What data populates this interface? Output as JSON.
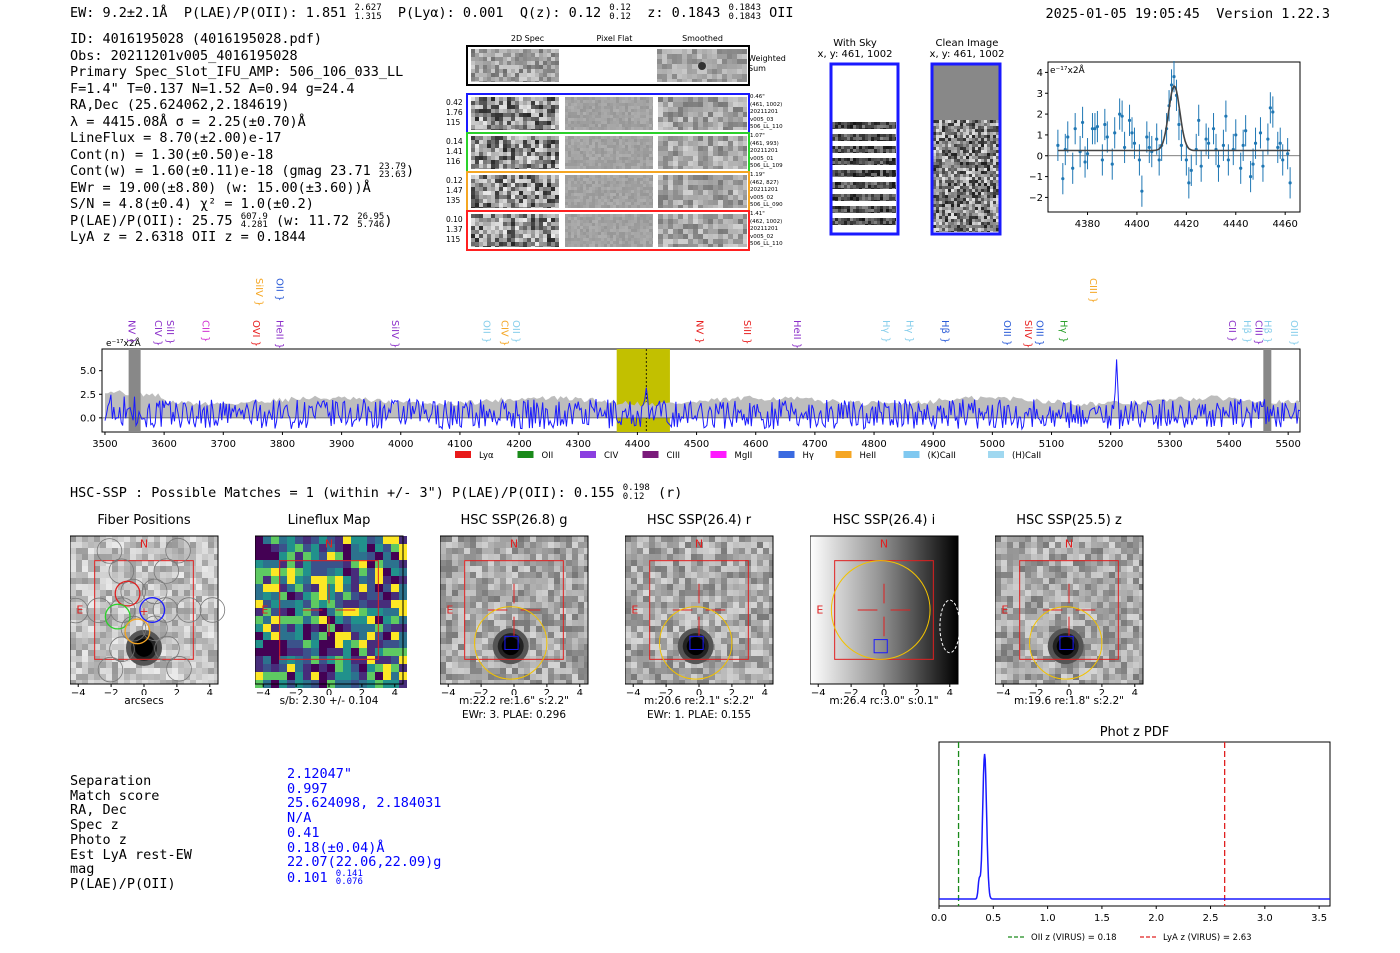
{
  "header": {
    "ew": "EW: 9.2±2.1Å",
    "plae_label": "P(LAE)/P(OII): 1.851",
    "plae_hi": "2.627",
    "plae_lo": "1.315",
    "plya": "P(Lyα): 0.001",
    "q_label": "Q(z): 0.12",
    "q_hi": "0.12",
    "q_lo": "0.12",
    "z_label": "z: 0.1843",
    "z_hi": "0.1843",
    "z_lo": "0.1843",
    "z_line": "OII",
    "timestamp": "2025-01-05 19:05:45",
    "version": "Version 1.22.3"
  },
  "info": {
    "id": "ID: 4016195028 (4016195028.pdf)",
    "obs": "Obs: 20211201v005_4016195028",
    "primary": "Primary Spec_Slot_IFU_AMP: 506_106_033_LL",
    "fit": "F=1.4\"  T=0.137  N=1.52  A=0.94  g=24.4",
    "radec": "RA,Dec (25.624062,2.184619)",
    "lambda": "λ = 4415.08Å   σ = 2.25(±0.70)Å",
    "lineflux": "LineFlux = 8.70(±2.00)e-17",
    "contn": "Cont(n) = 1.30(±0.50)e-18",
    "contw": "Cont(w) = 1.60(±0.11)e-18 (gmag 23.71",
    "gmag_hi": "23.79",
    "gmag_lo": "23.63",
    "ewr": "EWr = 19.00(±8.80) (w: 15.00(±3.60))Å",
    "sn": "S/N = 4.8(±0.4)  χ² = 1.0(±0.2)",
    "plae": "P(LAE)/P(OII): 25.75",
    "plae_hi": "607.9",
    "plae_lo": "4.281",
    "plae_w": "(w: 11.72",
    "plae_w_hi": "26.95",
    "plae_w_lo": "5.746",
    "lya_z": "LyA z = 2.6318   OII z = 0.1844"
  },
  "cutouts": {
    "col_2d": "2D Spec",
    "col_flat": "Pixel Flat",
    "col_smooth": "Smoothed",
    "weighted": "Weighted Sum",
    "rows": [
      {
        "color": "#1a1aff",
        "left": [
          "0.42",
          "1.76",
          "115"
        ],
        "right": [
          "0.46\"",
          "(461, 1002)",
          "20211201",
          "v005_03",
          "506_LL_110"
        ]
      },
      {
        "color": "#2ad12a",
        "left": [
          "0.14",
          "1.41",
          "116"
        ],
        "right": [
          "1.07\"",
          "(461, 993)",
          "20211201",
          "v005_01",
          "506_LL_109"
        ]
      },
      {
        "color": "#f5a623",
        "left": [
          "0.12",
          "1.47",
          "135"
        ],
        "right": [
          "1.19\"",
          "(462, 827)",
          "20211201",
          "v005_02",
          "506_LL_090"
        ]
      },
      {
        "color": "#ff2020",
        "left": [
          "0.10",
          "1.37",
          "115"
        ],
        "right": [
          "1.41\"",
          "(462, 1002)",
          "20211201",
          "v005_02",
          "506_LL_110"
        ]
      }
    ]
  },
  "sky": {
    "with_sky": "With Sky",
    "clean": "Clean Image",
    "coords": "x, y: 461, 1002"
  },
  "zoom_chart": {
    "type": "scatter",
    "ylabel": "e⁻¹⁷x2Å",
    "xticks": [
      "4380",
      "4400",
      "4420",
      "4440",
      "4460"
    ],
    "yticks": [
      "4",
      "3",
      "2",
      "1",
      "0",
      "−1",
      "−2"
    ],
    "xlim": [
      4364,
      4466
    ],
    "ylim": [
      -2.7,
      4.5
    ],
    "x": [
      4368,
      4370,
      4371,
      4372,
      4374,
      4375,
      4377,
      4378,
      4379,
      4380,
      4382,
      4383,
      4384,
      4386,
      4387,
      4388,
      4390,
      4391,
      4393,
      4394,
      4395,
      4397,
      4398,
      4399,
      4401,
      4402,
      4404,
      4405,
      4406,
      4408,
      4409,
      4410,
      4412,
      4413,
      4414,
      4415,
      4416,
      4417,
      4418,
      4420,
      4421,
      4422,
      4424,
      4425,
      4426,
      4428,
      4429,
      4431,
      4432,
      4433,
      4435,
      4436,
      4437,
      4439,
      4440,
      4442,
      4443,
      4444,
      4446,
      4447,
      4448,
      4450,
      4451,
      4453,
      4454,
      4455,
      4457,
      4458,
      4459,
      4461,
      4462
    ],
    "y": [
      0.5,
      -1.1,
      0.3,
      0.9,
      -0.6,
      1.3,
      0.2,
      1.6,
      -0.3,
      0.1,
      1.3,
      1.3,
      1.4,
      -0.2,
      1.5,
      0.9,
      -0.4,
      1.1,
      2.0,
      1.9,
      0.4,
      1.7,
      1.1,
      0.6,
      -0.2,
      -1.7,
      0.9,
      0.4,
      0.2,
      0.8,
      -0.2,
      0.5,
      1.3,
      2.4,
      3.4,
      3.8,
      2.9,
      1.5,
      0.5,
      -0.2,
      -1.3,
      -0.7,
      0.3,
      1.7,
      -0.5,
      0.8,
      0.6,
      1.3,
      0.3,
      -0.5,
      0.5,
      1.9,
      -0.2,
      0.3,
      1.0,
      -0.6,
      0.5,
      1.2,
      -1.0,
      -0.4,
      0.6,
      1.1,
      -0.5,
      0.8,
      2.3,
      2.1,
      0.4,
      0.6,
      -0.2,
      0.1,
      -1.3
    ],
    "fit_center": 4415.1,
    "fit_sigma": 2.25,
    "fit_amp": 3.1,
    "fit_cont": 0.25
  },
  "spectrum": {
    "type": "line",
    "ylabel": "e⁻¹⁷x2Å",
    "xticks": [
      "3500",
      "3600",
      "3700",
      "3800",
      "3900",
      "4000",
      "4100",
      "4200",
      "4300",
      "4400",
      "4500",
      "4600",
      "4700",
      "4800",
      "4900",
      "5000",
      "5100",
      "5200",
      "5300",
      "5400",
      "5500"
    ],
    "yticks": [
      "5.0",
      "2.5",
      "0.0"
    ],
    "xlim": [
      3495,
      5520
    ],
    "ylim": [
      -1.5,
      7.3
    ],
    "highlight": [
      4365,
      4455
    ],
    "center": 4415,
    "lines_top": [
      {
        "label": "SiIV",
        "x": 3760,
        "color": "#f5a623"
      },
      {
        "label": "OII",
        "x": 3795,
        "color": "#2a5bd7"
      },
      {
        "label": "CIII",
        "x": 5170,
        "color": "#f5a623"
      }
    ],
    "lines_mid": [
      {
        "label": "NV",
        "x": 3545,
        "color": "#8b2fc9"
      },
      {
        "label": "CIV",
        "x": 3590,
        "color": "#8b2fc9"
      },
      {
        "label": "SiII",
        "x": 3610,
        "color": "#8b2fc9"
      },
      {
        "label": "CII",
        "x": 3670,
        "color": "#d02fd0"
      },
      {
        "label": "OVI",
        "x": 3755,
        "color": "#e82020"
      },
      {
        "label": "HeII",
        "x": 3795,
        "color": "#8b2fc9"
      },
      {
        "label": "SiIV",
        "x": 3990,
        "color": "#8b2fc9"
      },
      {
        "label": "OII",
        "x": 4145,
        "color": "#87ceeb"
      },
      {
        "label": "CIV",
        "x": 4175,
        "color": "#f5a623"
      },
      {
        "label": "OII",
        "x": 4195,
        "color": "#87ceeb"
      },
      {
        "label": "NV",
        "x": 4505,
        "color": "#e82020"
      },
      {
        "label": "SiII",
        "x": 4585,
        "color": "#e82020"
      },
      {
        "label": "HeII",
        "x": 4670,
        "color": "#8b2fc9"
      },
      {
        "label": "Hγ",
        "x": 4820,
        "color": "#87ceeb"
      },
      {
        "label": "Hγ",
        "x": 4860,
        "color": "#87ceeb"
      },
      {
        "label": "Hβ",
        "x": 4920,
        "color": "#2a5bd7"
      },
      {
        "label": "OIII",
        "x": 5025,
        "color": "#2a5bd7"
      },
      {
        "label": "SiIV",
        "x": 5060,
        "color": "#e82020"
      },
      {
        "label": "OIII",
        "x": 5080,
        "color": "#2a5bd7"
      },
      {
        "label": "Hγ",
        "x": 5120,
        "color": "#2aa02a"
      },
      {
        "label": "CII",
        "x": 5405,
        "color": "#8b2fc9"
      },
      {
        "label": "Hβ",
        "x": 5430,
        "color": "#87ceeb"
      },
      {
        "label": "CIII",
        "x": 5450,
        "color": "#8b2fc9"
      },
      {
        "label": "Hβ",
        "x": 5465,
        "color": "#87ceeb"
      },
      {
        "label": "OIII",
        "x": 5510,
        "color": "#87ceeb"
      }
    ],
    "legend": [
      {
        "label": "Lyα",
        "color": "#e81a1a"
      },
      {
        "label": "OII",
        "color": "#1a8a1a"
      },
      {
        "label": "CIV",
        "color": "#8b3fe0"
      },
      {
        "label": "CIII",
        "color": "#7a1a7a"
      },
      {
        "label": "MgII",
        "color": "#ff1aff"
      },
      {
        "label": "Hγ",
        "color": "#3a6ae0"
      },
      {
        "label": "HeII",
        "color": "#f5a623"
      },
      {
        "label": "(K)CaII",
        "color": "#7fc8f0"
      },
      {
        "label": "(H)CaII",
        "color": "#a0d8f0"
      }
    ]
  },
  "hsc": {
    "summary": "HSC-SSP : Possible Matches = 1 (within +/- 3\")  P(LAE)/P(OII): 0.155",
    "summary_hi": "0.198",
    "summary_lo": "0.12",
    "summary_band": "(r)",
    "ticks": [
      "4",
      "2",
      "0",
      "−2",
      "−4"
    ],
    "xticks": [
      "−4",
      "−2",
      "0",
      "2",
      "4"
    ],
    "north": "N",
    "east": "E",
    "panels": [
      {
        "title": "Fiber Positions",
        "cap1": "arcsecs",
        "cap2": ""
      },
      {
        "title": "Lineflux Map",
        "cap1": "s/b: 2.30 +/- 0.104",
        "cap2": ""
      },
      {
        "title": "HSC SSP(26.8) g",
        "cap1": "m:22.2   re:1.6\"   s:2.2\"",
        "cap2": "EWr: 3. PLAE: 0.296"
      },
      {
        "title": "HSC SSP(26.4) r",
        "cap1": "m:20.6   re:2.1\"   s:2.2\"",
        "cap2": "EWr: 1. PLAE: 0.155"
      },
      {
        "title": "HSC SSP(26.4) i",
        "cap1": "m:26.4  rc:3.0\"   s:0.1\"",
        "cap2": ""
      },
      {
        "title": "HSC SSP(25.5) z",
        "cap1": "m:19.6   re:1.8\"   s:2.2\"",
        "cap2": ""
      }
    ]
  },
  "match": {
    "labels": [
      "Separation",
      "Match score",
      "RA, Dec",
      "Spec z",
      "Photo z",
      "Est LyA rest-EW",
      "mag",
      "P(LAE)/P(OII)"
    ],
    "values": [
      "2.12047\"",
      "0.997",
      "25.624098, 2.184031",
      "N/A",
      "0.41",
      "0.18(±0.04)Å",
      "22.07(22.06,22.09)g",
      "0.101"
    ],
    "plae_hi": "0.141",
    "plae_lo": "0.076"
  },
  "photz": {
    "type": "line",
    "title": "Phot z PDF",
    "xticks": [
      "0.0",
      "0.5",
      "1.0",
      "1.5",
      "2.0",
      "2.5",
      "3.0",
      "3.5"
    ],
    "xlim": [
      0,
      3.6
    ],
    "peak": 0.42,
    "oii_z": 0.18,
    "lya_z": 2.63,
    "legend_oii": "OII z (VIRUS) = 0.18",
    "legend_lya": "LyA z (VIRUS) = 2.63"
  }
}
